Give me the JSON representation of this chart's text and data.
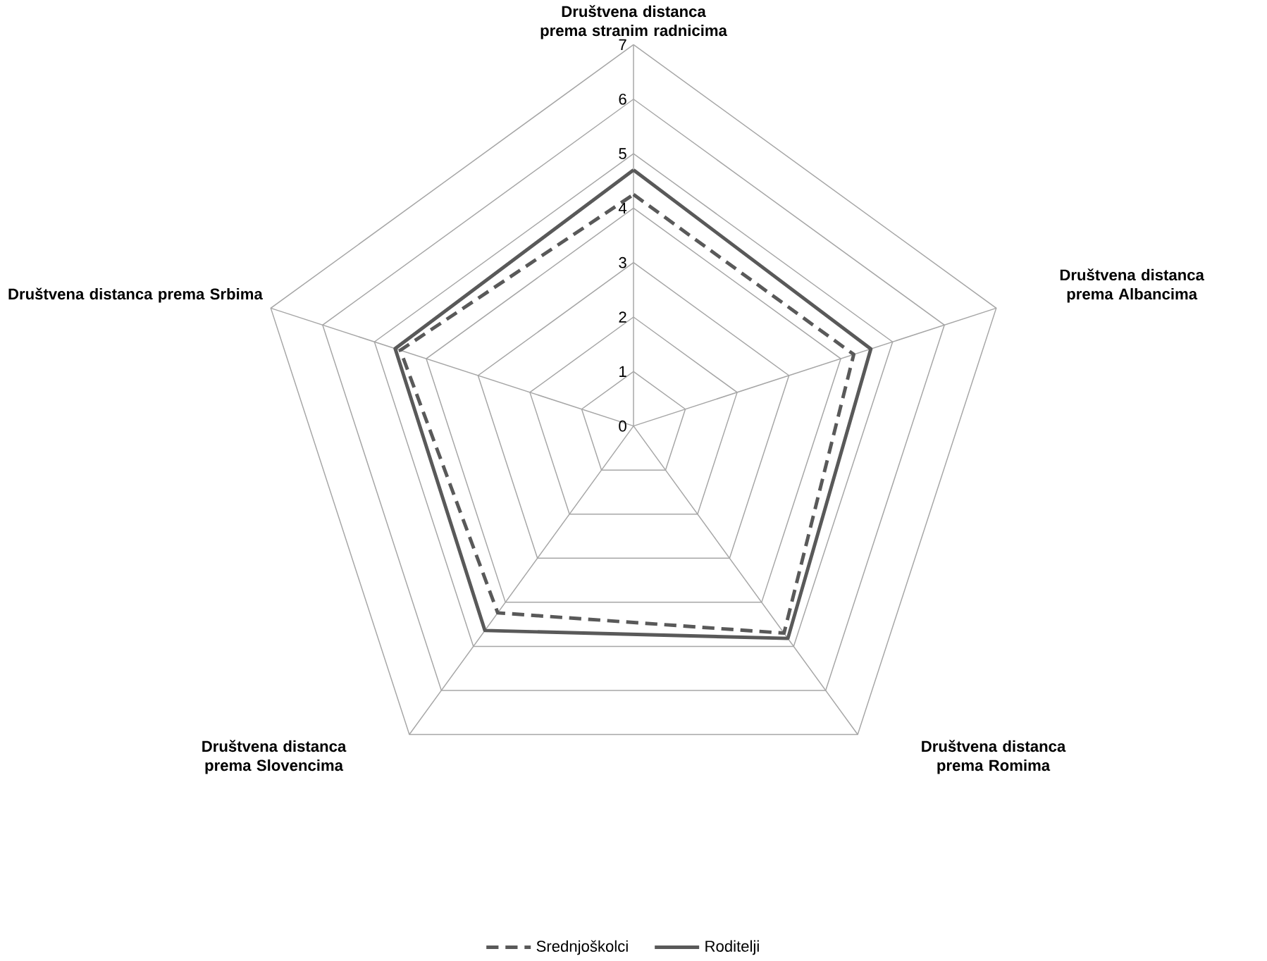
{
  "chart_data": {
    "type": "radar",
    "categories": [
      "Društvena distanca prema stranim radnicima",
      "Društvena distanca prema Albancima",
      "Društvena distanca prema Romima",
      "Društvena distanca prema Slovencima",
      "Društvena distanca prema Srbima"
    ],
    "series": [
      {
        "name": "Srednjoškolci",
        "color": "#595959",
        "line_style": "dashed",
        "values": [
          4.25,
          4.25,
          4.7,
          4.24,
          4.5
        ]
      },
      {
        "name": "Roditelji",
        "color": "#595959",
        "line_style": "solid",
        "values": [
          4.7,
          4.58,
          4.82,
          4.64,
          4.6
        ]
      }
    ],
    "ylim": [
      0,
      7
    ],
    "yticks": [
      0,
      1,
      2,
      3,
      4,
      5,
      6,
      7
    ],
    "grid": true,
    "legend": "bottom",
    "marker": "none"
  }
}
